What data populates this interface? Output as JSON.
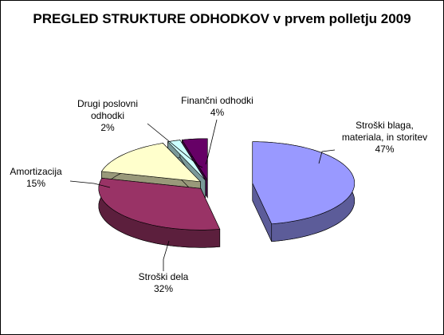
{
  "chart_data": {
    "type": "pie3d",
    "title": "PREGLED STRUKTURE ODHODKOV v prvem polletju 2009",
    "categories": [
      "Stroški blaga, materiala, in storitev",
      "Stroški dela",
      "Amortizacija",
      "Drugi poslovni odhodki",
      "Finančni odhodki"
    ],
    "values": [
      47,
      32,
      15,
      2,
      4
    ],
    "value_labels": [
      "47%",
      "32%",
      "15%",
      "2%",
      "4%"
    ],
    "colors": [
      "#9999ff",
      "#993366",
      "#ffffcc",
      "#ccffff",
      "#660066"
    ]
  }
}
